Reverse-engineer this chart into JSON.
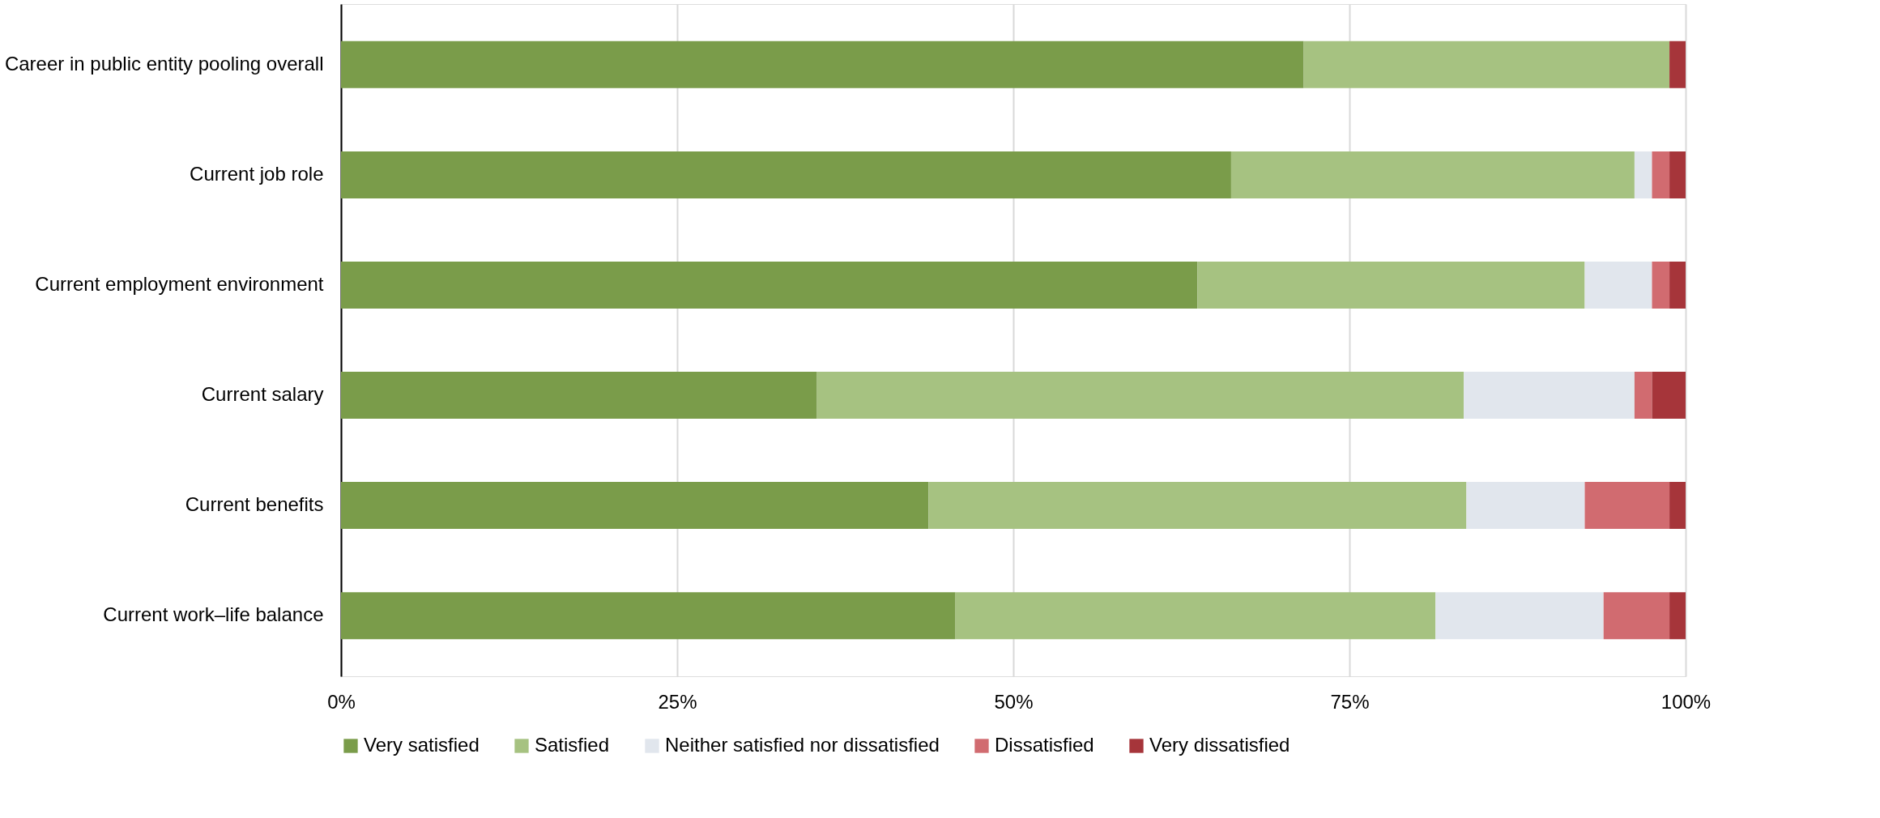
{
  "chart_data": {
    "type": "bar",
    "orientation": "horizontal",
    "stacked": true,
    "categories": [
      "Career in public entity pooling overall",
      "Current job role",
      "Current employment environment",
      "Current salary",
      "Current benefits",
      "Current work–life balance"
    ],
    "series": [
      {
        "name": "Very satisfied",
        "color": "#7a9c4a",
        "values": [
          71.6,
          66.2,
          63.7,
          35.4,
          43.7,
          45.7
        ]
      },
      {
        "name": "Satisfied",
        "color": "#a6c281",
        "values": [
          27.2,
          30.0,
          28.8,
          48.1,
          40.0,
          35.7
        ]
      },
      {
        "name": "Neither satisfied nor dissatisfied",
        "color": "#e1e6ed",
        "values": [
          0,
          1.3,
          5.0,
          12.7,
          8.8,
          12.5
        ]
      },
      {
        "name": "Dissatisfied",
        "color": "#d16b70",
        "values": [
          0,
          1.3,
          1.3,
          1.3,
          6.3,
          4.9
        ]
      },
      {
        "name": "Very dissatisfied",
        "color": "#a6353a",
        "values": [
          1.2,
          1.2,
          1.2,
          2.5,
          1.2,
          1.2
        ]
      }
    ],
    "xlim": [
      0,
      100
    ],
    "xticks": [
      {
        "value": 0,
        "label": "0%"
      },
      {
        "value": 25,
        "label": "25%"
      },
      {
        "value": 50,
        "label": "50%"
      },
      {
        "value": 75,
        "label": "75%"
      },
      {
        "value": 100,
        "label": "100%"
      }
    ],
    "grid": "x",
    "legend": "bottom"
  }
}
